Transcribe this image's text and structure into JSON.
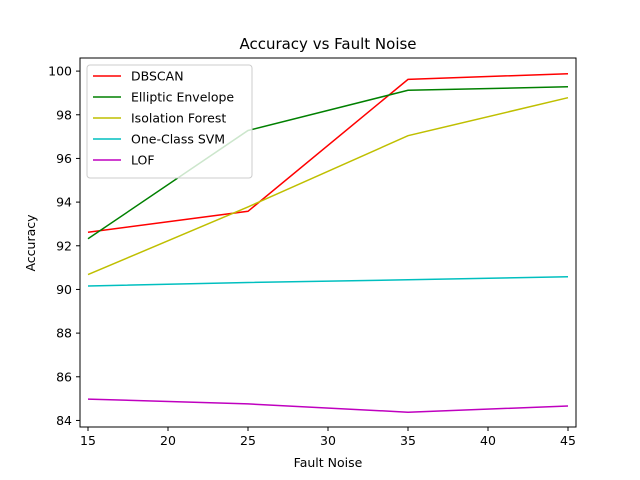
{
  "chart_data": {
    "type": "line",
    "title": "Accuracy vs Fault Noise",
    "xlabel": "Fault Noise",
    "ylabel": "Accuracy",
    "x": [
      15,
      25,
      35,
      45
    ],
    "xlim": [
      14.5,
      45.5
    ],
    "ylim": [
      83.7,
      100.6
    ],
    "xticks": [
      15,
      20,
      25,
      30,
      35,
      40,
      45
    ],
    "yticks": [
      84,
      86,
      88,
      90,
      92,
      94,
      96,
      98,
      100
    ],
    "grid": false,
    "legend_position": "top-left",
    "series": [
      {
        "name": "DBSCAN",
        "color": "#ff0000",
        "values": [
          92.62,
          93.58,
          99.62,
          99.88
        ]
      },
      {
        "name": "Elliptic Envelope",
        "color": "#008000",
        "values": [
          92.32,
          97.28,
          99.12,
          99.28
        ]
      },
      {
        "name": "Isolation Forest",
        "color": "#bfbf00",
        "values": [
          90.68,
          93.78,
          97.04,
          98.78
        ]
      },
      {
        "name": "One-Class SVM",
        "color": "#00bfbf",
        "values": [
          90.16,
          90.32,
          90.44,
          90.58
        ]
      },
      {
        "name": "LOF",
        "color": "#bf00bf",
        "values": [
          84.98,
          84.76,
          84.38,
          84.66
        ]
      }
    ]
  }
}
